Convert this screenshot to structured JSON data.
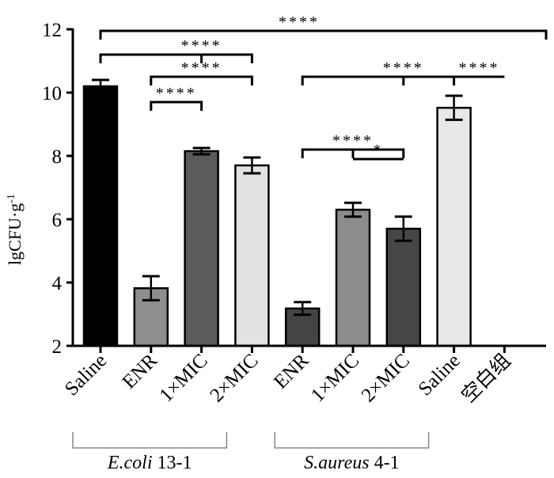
{
  "chart_data": {
    "type": "bar",
    "ylabel": "lgCFU·g",
    "ylabel_sup": "-1",
    "ylim": [
      2,
      12
    ],
    "yticks": [
      2,
      4,
      6,
      8,
      10,
      12
    ],
    "categories": [
      "Saline",
      "ENR",
      "1×MIC",
      "2×MIC",
      "ENR",
      "1×MIC",
      "2×MIC",
      "Saline",
      "空白组"
    ],
    "values": [
      10.2,
      3.82,
      8.15,
      7.7,
      3.18,
      6.3,
      5.7,
      9.52,
      null
    ],
    "errors": [
      0.2,
      0.38,
      0.1,
      0.25,
      0.2,
      0.22,
      0.38,
      0.38,
      null
    ],
    "colors": [
      "#000000",
      "#8e8e8e",
      "#5b5b5b",
      "#e2e2e2",
      "#444444",
      "#8c8c8c",
      "#464646",
      "#e8e8e8",
      null
    ],
    "groups": [
      {
        "label_italic": "E.coli",
        "label_rest": " 13-1",
        "from": 0,
        "to": 3
      },
      {
        "label_italic": "S.aureus",
        "label_rest": " 4-1",
        "from": 4,
        "to": 7
      }
    ],
    "significance": [
      {
        "from": 0,
        "to": 8,
        "mid": [],
        "y": 11.95,
        "label": "****"
      },
      {
        "from": 0,
        "to": 3,
        "mid": [
          2
        ],
        "y": 11.2,
        "label": "****"
      },
      {
        "from": 1,
        "to": 3,
        "mid": [],
        "y": 10.5,
        "label": "****"
      },
      {
        "from": 1,
        "to": 2,
        "mid": [],
        "y": 9.7,
        "label": "****"
      },
      {
        "from": 4,
        "to": 7,
        "mid": [
          6
        ],
        "y": 10.5,
        "label": "****"
      },
      {
        "from": 7,
        "to": 8,
        "mid": [],
        "y": 10.5,
        "label": "****",
        "no_ticks": true
      },
      {
        "from": 4,
        "to": 6,
        "mid": [
          5
        ],
        "y": 8.2,
        "label": "****"
      },
      {
        "from": 5,
        "to": 6,
        "mid": [],
        "y": 7.9,
        "label": "*",
        "no_ticks": true
      }
    ]
  }
}
